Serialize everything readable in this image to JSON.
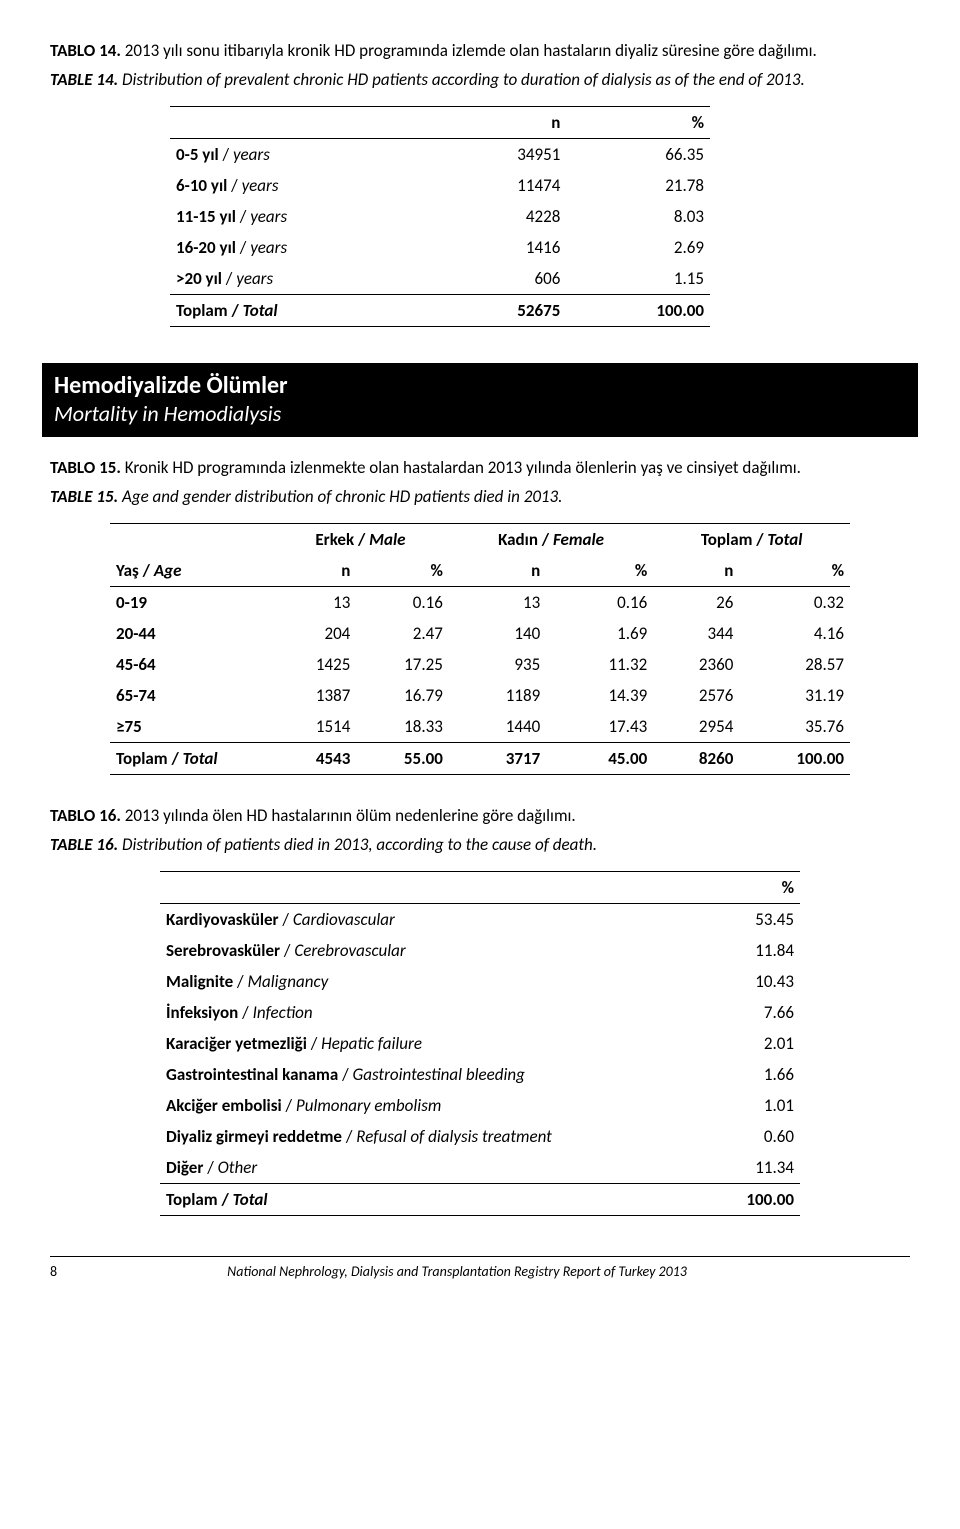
{
  "table14": {
    "title_tr": "TABLO 14. 2013 yılı sonu itibarıyla kronik HD programında izlemde olan hastaların diyaliz süresine göre dağılımı.",
    "title_en": "TABLE 14. Distribution of prevalent chronic HD patients according to duration of dialysis as of the end of 2013.",
    "header_n": "n",
    "header_pct": "%",
    "rows": [
      {
        "l_tr": "0-5 yıl",
        "l_en": "years",
        "n": "34951",
        "p": "66.35"
      },
      {
        "l_tr": "6-10 yıl",
        "l_en": "years",
        "n": "11474",
        "p": "21.78"
      },
      {
        "l_tr": "11-15 yıl",
        "l_en": "years",
        "n": "4228",
        "p": "8.03"
      },
      {
        "l_tr": "16-20 yıl",
        "l_en": "years",
        "n": "1416",
        "p": "2.69"
      },
      {
        "l_tr": ">20 yıl",
        "l_en": "years",
        "n": "606",
        "p": "1.15"
      }
    ],
    "total": {
      "l_tr": "Toplam",
      "l_en": "Total",
      "n": "52675",
      "p": "100.00"
    }
  },
  "section": {
    "tr": "Hemodiyalizde Ölümler",
    "en": "Mortality in Hemodialysis"
  },
  "table15": {
    "title_tr": "TABLO 15. Kronik HD programında izlenmekte olan hastalardan 2013 yılında ölenlerin yaş ve cinsiyet dağılımı.",
    "title_en": "TABLE 15. Age and gender distribution of chronic HD patients died in 2013.",
    "group_headers": [
      {
        "tr": "Erkek",
        "en": "Male"
      },
      {
        "tr": "Kadın",
        "en": "Female"
      },
      {
        "tr": "Toplam",
        "en": "Total"
      }
    ],
    "age_tr": "Yaş",
    "age_en": "Age",
    "sub_n": "n",
    "sub_pct": "%",
    "rows": [
      {
        "age": "0-19",
        "m_n": "13",
        "m_p": "0.16",
        "f_n": "13",
        "f_p": "0.16",
        "t_n": "26",
        "t_p": "0.32"
      },
      {
        "age": "20-44",
        "m_n": "204",
        "m_p": "2.47",
        "f_n": "140",
        "f_p": "1.69",
        "t_n": "344",
        "t_p": "4.16"
      },
      {
        "age": "45-64",
        "m_n": "1425",
        "m_p": "17.25",
        "f_n": "935",
        "f_p": "11.32",
        "t_n": "2360",
        "t_p": "28.57"
      },
      {
        "age": "65-74",
        "m_n": "1387",
        "m_p": "16.79",
        "f_n": "1189",
        "f_p": "14.39",
        "t_n": "2576",
        "t_p": "31.19"
      },
      {
        "age": "≥75",
        "m_n": "1514",
        "m_p": "18.33",
        "f_n": "1440",
        "f_p": "17.43",
        "t_n": "2954",
        "t_p": "35.76"
      }
    ],
    "total": {
      "age_tr": "Toplam",
      "age_en": "Total",
      "m_n": "4543",
      "m_p": "55.00",
      "f_n": "3717",
      "f_p": "45.00",
      "t_n": "8260",
      "t_p": "100.00"
    }
  },
  "table16": {
    "title_tr": "TABLO 16. 2013 yılında ölen HD hastalarının ölüm nedenlerine göre dağılımı.",
    "title_en": "TABLE 16. Distribution of patients died in 2013, according to the cause of death.",
    "header_pct": "%",
    "rows": [
      {
        "tr": "Kardiyovasküler",
        "en": "Cardiovascular",
        "p": "53.45"
      },
      {
        "tr": "Serebrovasküler",
        "en": "Cerebrovascular",
        "p": "11.84"
      },
      {
        "tr": "Malignite",
        "en": "Malignancy",
        "p": "10.43"
      },
      {
        "tr": "İnfeksiyon",
        "en": "Infection",
        "p": "7.66"
      },
      {
        "tr": "Karaciğer yetmezliği",
        "en": "Hepatic failure",
        "p": "2.01"
      },
      {
        "tr": "Gastrointestinal kanama",
        "en": "Gastrointestinal bleeding",
        "p": "1.66"
      },
      {
        "tr": "Akciğer embolisi",
        "en": "Pulmonary embolism",
        "p": "1.01"
      },
      {
        "tr": "Diyaliz girmeyi reddetme",
        "en": "Refusal of dialysis treatment",
        "p": "0.60"
      },
      {
        "tr": "Diğer",
        "en": "Other",
        "p": "11.34"
      }
    ],
    "total": {
      "tr": "Toplam",
      "en": "Total",
      "p": "100.00"
    }
  },
  "footer": {
    "page": "8",
    "text": "National Nephrology, Dialysis and Transplantation Registry Report of Turkey 2013"
  }
}
